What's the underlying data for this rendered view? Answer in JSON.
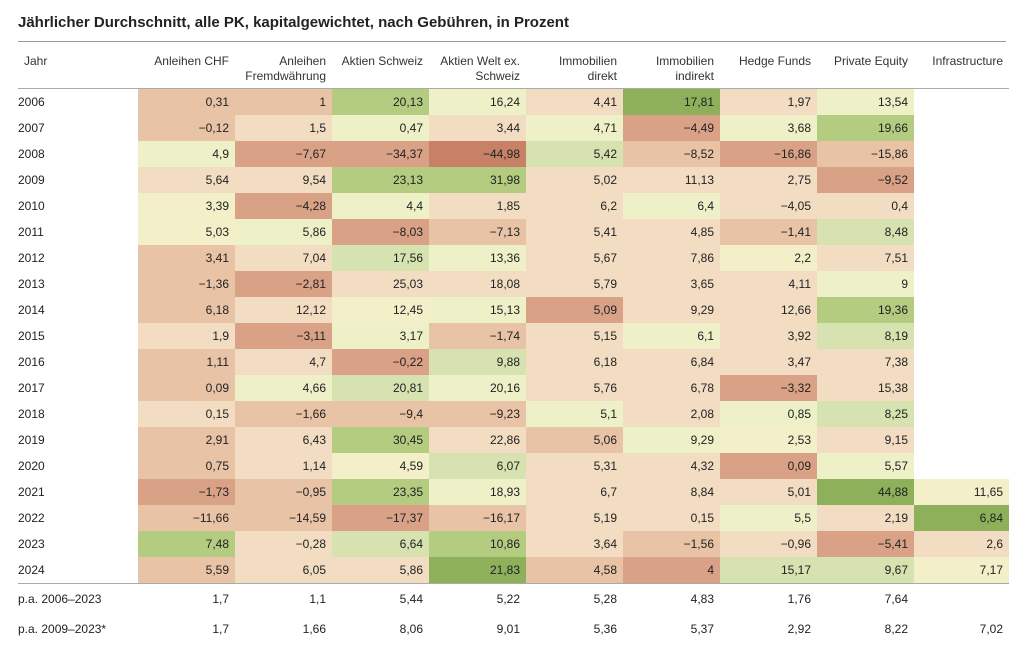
{
  "title": "Jährlicher Durchschnitt, alle PK, kapitalgewichtet, nach Gebühren, in Prozent",
  "columns": [
    "Jahr",
    "Anleihen CHF",
    "Anleihen Fremdwährung",
    "Aktien Schweiz",
    "Aktien Welt ex. Schweiz",
    "Immobilien direkt",
    "Immobilien indirekt",
    "Hedge Funds",
    "Private Equity",
    "Infrastructure"
  ],
  "heat_palette": {
    "g4": "#8fb05a",
    "g3": "#b4cc80",
    "g2": "#d6e2b0",
    "g1": "#eef0c8",
    "n": "#f3efc8",
    "r1": "#f2ddc3",
    "r2": "#e8c3a6",
    "r3": "#d9a287",
    "r4": "#c78167"
  },
  "rows": [
    {
      "year": "2006",
      "cells": [
        {
          "v": "0,31",
          "c": "r2"
        },
        {
          "v": "1",
          "c": "r2"
        },
        {
          "v": "20,13",
          "c": "g3"
        },
        {
          "v": "16,24",
          "c": "g1"
        },
        {
          "v": "4,41",
          "c": "r1"
        },
        {
          "v": "17,81",
          "c": "g4"
        },
        {
          "v": "1,97",
          "c": "r1"
        },
        {
          "v": "13,54",
          "c": "g1"
        },
        {
          "v": "",
          "c": null
        }
      ]
    },
    {
      "year": "2007",
      "cells": [
        {
          "v": "−0,12",
          "c": "r2"
        },
        {
          "v": "1,5",
          "c": "r1"
        },
        {
          "v": "0,47",
          "c": "g1"
        },
        {
          "v": "3,44",
          "c": "r1"
        },
        {
          "v": "4,71",
          "c": "g1"
        },
        {
          "v": "−4,49",
          "c": "r3"
        },
        {
          "v": "3,68",
          "c": "g1"
        },
        {
          "v": "19,66",
          "c": "g3"
        },
        {
          "v": "",
          "c": null
        }
      ]
    },
    {
      "year": "2008",
      "cells": [
        {
          "v": "4,9",
          "c": "g1"
        },
        {
          "v": "−7,67",
          "c": "r3"
        },
        {
          "v": "−34,37",
          "c": "r3"
        },
        {
          "v": "−44,98",
          "c": "r4"
        },
        {
          "v": "5,42",
          "c": "g2"
        },
        {
          "v": "−8,52",
          "c": "r2"
        },
        {
          "v": "−16,86",
          "c": "r3"
        },
        {
          "v": "−15,86",
          "c": "r2"
        },
        {
          "v": "",
          "c": null
        }
      ]
    },
    {
      "year": "2009",
      "cells": [
        {
          "v": "5,64",
          "c": "r1"
        },
        {
          "v": "9,54",
          "c": "r1"
        },
        {
          "v": "23,13",
          "c": "g3"
        },
        {
          "v": "31,98",
          "c": "g3"
        },
        {
          "v": "5,02",
          "c": "r1"
        },
        {
          "v": "11,13",
          "c": "r1"
        },
        {
          "v": "2,75",
          "c": "r1"
        },
        {
          "v": "−9,52",
          "c": "r3"
        },
        {
          "v": "",
          "c": null
        }
      ]
    },
    {
      "year": "2010",
      "cells": [
        {
          "v": "3,39",
          "c": "n"
        },
        {
          "v": "−4,28",
          "c": "r3"
        },
        {
          "v": "4,4",
          "c": "g1"
        },
        {
          "v": "1,85",
          "c": "r1"
        },
        {
          "v": "6,2",
          "c": "r1"
        },
        {
          "v": "6,4",
          "c": "g1"
        },
        {
          "v": "−4,05",
          "c": "r1"
        },
        {
          "v": "0,4",
          "c": "r1"
        },
        {
          "v": "",
          "c": null
        }
      ]
    },
    {
      "year": "2011",
      "cells": [
        {
          "v": "5,03",
          "c": "n"
        },
        {
          "v": "5,86",
          "c": "g1"
        },
        {
          "v": "−8,03",
          "c": "r3"
        },
        {
          "v": "−7,13",
          "c": "r2"
        },
        {
          "v": "5,41",
          "c": "r1"
        },
        {
          "v": "4,85",
          "c": "r1"
        },
        {
          "v": "−1,41",
          "c": "r2"
        },
        {
          "v": "8,48",
          "c": "g2"
        },
        {
          "v": "",
          "c": null
        }
      ]
    },
    {
      "year": "2012",
      "cells": [
        {
          "v": "3,41",
          "c": "r2"
        },
        {
          "v": "7,04",
          "c": "r1"
        },
        {
          "v": "17,56",
          "c": "g2"
        },
        {
          "v": "13,36",
          "c": "g1"
        },
        {
          "v": "5,67",
          "c": "r1"
        },
        {
          "v": "7,86",
          "c": "r1"
        },
        {
          "v": "2,2",
          "c": "n"
        },
        {
          "v": "7,51",
          "c": "r1"
        },
        {
          "v": "",
          "c": null
        }
      ]
    },
    {
      "year": "2013",
      "cells": [
        {
          "v": "−1,36",
          "c": "r2"
        },
        {
          "v": "−2,81",
          "c": "r3"
        },
        {
          "v": "25,03",
          "c": "r1"
        },
        {
          "v": "18,08",
          "c": "r1"
        },
        {
          "v": "5,79",
          "c": "r1"
        },
        {
          "v": "3,65",
          "c": "r1"
        },
        {
          "v": "4,11",
          "c": "r1"
        },
        {
          "v": "9",
          "c": "g1"
        },
        {
          "v": "",
          "c": null
        }
      ]
    },
    {
      "year": "2014",
      "cells": [
        {
          "v": "6,18",
          "c": "r2"
        },
        {
          "v": "12,12",
          "c": "r1"
        },
        {
          "v": "12,45",
          "c": "n"
        },
        {
          "v": "15,13",
          "c": "g1"
        },
        {
          "v": "5,09",
          "c": "r3"
        },
        {
          "v": "9,29",
          "c": "r1"
        },
        {
          "v": "12,66",
          "c": "r1"
        },
        {
          "v": "19,36",
          "c": "g3"
        },
        {
          "v": "",
          "c": null
        }
      ]
    },
    {
      "year": "2015",
      "cells": [
        {
          "v": "1,9",
          "c": "r1"
        },
        {
          "v": "−3,11",
          "c": "r3"
        },
        {
          "v": "3,17",
          "c": "g1"
        },
        {
          "v": "−1,74",
          "c": "r2"
        },
        {
          "v": "5,15",
          "c": "r1"
        },
        {
          "v": "6,1",
          "c": "g1"
        },
        {
          "v": "3,92",
          "c": "r1"
        },
        {
          "v": "8,19",
          "c": "g2"
        },
        {
          "v": "",
          "c": null
        }
      ]
    },
    {
      "year": "2016",
      "cells": [
        {
          "v": "1,11",
          "c": "r2"
        },
        {
          "v": "4,7",
          "c": "r1"
        },
        {
          "v": "−0,22",
          "c": "r3"
        },
        {
          "v": "9,88",
          "c": "g2"
        },
        {
          "v": "6,18",
          "c": "r1"
        },
        {
          "v": "6,84",
          "c": "r1"
        },
        {
          "v": "3,47",
          "c": "r1"
        },
        {
          "v": "7,38",
          "c": "r1"
        },
        {
          "v": "",
          "c": null
        }
      ]
    },
    {
      "year": "2017",
      "cells": [
        {
          "v": "0,09",
          "c": "r2"
        },
        {
          "v": "4,66",
          "c": "g1"
        },
        {
          "v": "20,81",
          "c": "g2"
        },
        {
          "v": "20,16",
          "c": "g1"
        },
        {
          "v": "5,76",
          "c": "r1"
        },
        {
          "v": "6,78",
          "c": "r1"
        },
        {
          "v": "−3,32",
          "c": "r3"
        },
        {
          "v": "15,38",
          "c": "r1"
        },
        {
          "v": "",
          "c": null
        }
      ]
    },
    {
      "year": "2018",
      "cells": [
        {
          "v": "0,15",
          "c": "r1"
        },
        {
          "v": "−1,66",
          "c": "r2"
        },
        {
          "v": "−9,4",
          "c": "r2"
        },
        {
          "v": "−9,23",
          "c": "r2"
        },
        {
          "v": "5,1",
          "c": "g1"
        },
        {
          "v": "2,08",
          "c": "r1"
        },
        {
          "v": "0,85",
          "c": "g1"
        },
        {
          "v": "8,25",
          "c": "g2"
        },
        {
          "v": "",
          "c": null
        }
      ]
    },
    {
      "year": "2019",
      "cells": [
        {
          "v": "2,91",
          "c": "r2"
        },
        {
          "v": "6,43",
          "c": "r1"
        },
        {
          "v": "30,45",
          "c": "g3"
        },
        {
          "v": "22,86",
          "c": "r1"
        },
        {
          "v": "5,06",
          "c": "r2"
        },
        {
          "v": "9,29",
          "c": "g1"
        },
        {
          "v": "2,53",
          "c": "n"
        },
        {
          "v": "9,15",
          "c": "r1"
        },
        {
          "v": "",
          "c": null
        }
      ]
    },
    {
      "year": "2020",
      "cells": [
        {
          "v": "0,75",
          "c": "r2"
        },
        {
          "v": "1,14",
          "c": "r1"
        },
        {
          "v": "4,59",
          "c": "n"
        },
        {
          "v": "6,07",
          "c": "g2"
        },
        {
          "v": "5,31",
          "c": "r1"
        },
        {
          "v": "4,32",
          "c": "r1"
        },
        {
          "v": "0,09",
          "c": "r3"
        },
        {
          "v": "5,57",
          "c": "g1"
        },
        {
          "v": "",
          "c": null
        }
      ]
    },
    {
      "year": "2021",
      "cells": [
        {
          "v": "−1,73",
          "c": "r3"
        },
        {
          "v": "−0,95",
          "c": "r2"
        },
        {
          "v": "23,35",
          "c": "g3"
        },
        {
          "v": "18,93",
          "c": "g1"
        },
        {
          "v": "6,7",
          "c": "r1"
        },
        {
          "v": "8,84",
          "c": "r1"
        },
        {
          "v": "5,01",
          "c": "r1"
        },
        {
          "v": "44,88",
          "c": "g4"
        },
        {
          "v": "11,65",
          "c": "n"
        }
      ]
    },
    {
      "year": "2022",
      "cells": [
        {
          "v": "−11,66",
          "c": "r2"
        },
        {
          "v": "−14,59",
          "c": "r2"
        },
        {
          "v": "−17,37",
          "c": "r3"
        },
        {
          "v": "−16,17",
          "c": "r2"
        },
        {
          "v": "5,19",
          "c": "r1"
        },
        {
          "v": "0,15",
          "c": "r1"
        },
        {
          "v": "5,5",
          "c": "g1"
        },
        {
          "v": "2,19",
          "c": "r1"
        },
        {
          "v": "6,84",
          "c": "g4"
        }
      ]
    },
    {
      "year": "2023",
      "cells": [
        {
          "v": "7,48",
          "c": "g3"
        },
        {
          "v": "−0,28",
          "c": "r1"
        },
        {
          "v": "6,64",
          "c": "g2"
        },
        {
          "v": "10,86",
          "c": "g3"
        },
        {
          "v": "3,64",
          "c": "r1"
        },
        {
          "v": "−1,56",
          "c": "r2"
        },
        {
          "v": "−0,96",
          "c": "r1"
        },
        {
          "v": "−5,41",
          "c": "r3"
        },
        {
          "v": "2,6",
          "c": "r1"
        }
      ]
    },
    {
      "year": "2024",
      "cells": [
        {
          "v": "5,59",
          "c": "r2"
        },
        {
          "v": "6,05",
          "c": "r1"
        },
        {
          "v": "5,86",
          "c": "r1"
        },
        {
          "v": "21,83",
          "c": "g4"
        },
        {
          "v": "4,58",
          "c": "r2"
        },
        {
          "v": "4",
          "c": "r3"
        },
        {
          "v": "15,17",
          "c": "g2"
        },
        {
          "v": "9,67",
          "c": "g2"
        },
        {
          "v": "7,17",
          "c": "n"
        }
      ]
    }
  ],
  "summary_rows": [
    {
      "label": "p.a. 2006–2023",
      "cells": [
        "1,7",
        "1,1",
        "5,44",
        "5,22",
        "5,28",
        "4,83",
        "1,76",
        "7,64",
        ""
      ]
    },
    {
      "label": "p.a. 2009–2023*",
      "cells": [
        "1,7",
        "1,66",
        "8,06",
        "9,01",
        "5,36",
        "5,37",
        "2,92",
        "8,22",
        "7,02"
      ]
    }
  ]
}
